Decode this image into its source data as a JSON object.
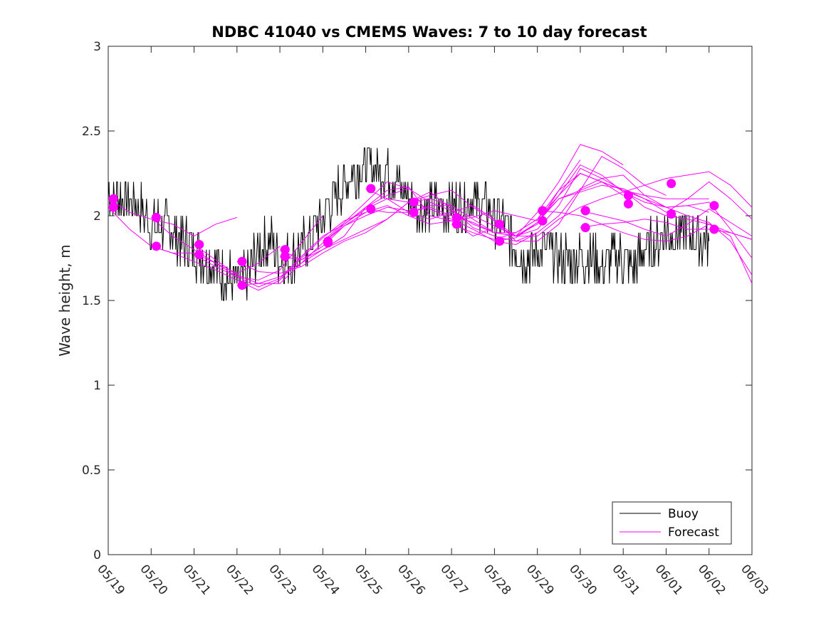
{
  "chart_data": {
    "type": "line",
    "title": "NDBC 41040 vs CMEMS Waves: 7 to 10 day forecast",
    "xlabel": "",
    "ylabel": "Wave height, m",
    "xlim": [
      0,
      15
    ],
    "ylim": [
      0,
      3
    ],
    "x_tick_labels": [
      "05/19",
      "05/20",
      "05/21",
      "05/22",
      "05/23",
      "05/24",
      "05/25",
      "05/26",
      "05/27",
      "05/28",
      "05/29",
      "05/30",
      "05/31",
      "06/01",
      "06/02",
      "06/03"
    ],
    "y_ticks": [
      0,
      0.5,
      1,
      1.5,
      2,
      2.5,
      3
    ],
    "y_tick_labels": [
      "0",
      "0.5",
      "1",
      "1.5",
      "2",
      "2.5",
      "3"
    ],
    "grid": false,
    "legend_position": "bottom-right",
    "colors": {
      "buoy": "#000000",
      "forecast": "#ff00ff"
    },
    "series": [
      {
        "name": "Buoy",
        "x": [
          0,
          0.25,
          0.5,
          0.75,
          1,
          1.25,
          1.5,
          1.75,
          2,
          2.25,
          2.5,
          2.75,
          3,
          3.25,
          3.5,
          3.75,
          4,
          4.25,
          4.5,
          4.75,
          5,
          5.25,
          5.5,
          5.75,
          6,
          6.25,
          6.5,
          6.75,
          7,
          7.25,
          7.5,
          7.75,
          8,
          8.25,
          8.5,
          8.75,
          9,
          9.25,
          9.5,
          9.75,
          10,
          10.25,
          10.5,
          10.75,
          11,
          11.25,
          11.5,
          11.75,
          12,
          12.25,
          12.5,
          12.75,
          13,
          13.25,
          13.5,
          13.75,
          14
        ],
        "y": [
          2.15,
          2.1,
          2.1,
          2.05,
          1.95,
          1.95,
          1.9,
          1.85,
          1.8,
          1.75,
          1.7,
          1.65,
          1.6,
          1.65,
          1.8,
          1.85,
          1.75,
          1.75,
          1.8,
          1.9,
          2.0,
          2.1,
          2.2,
          2.25,
          2.3,
          2.3,
          2.25,
          2.2,
          2.1,
          2.05,
          2.05,
          2.05,
          2.05,
          2.05,
          2.1,
          2.05,
          2.0,
          1.95,
          1.8,
          1.75,
          1.8,
          1.8,
          1.75,
          1.75,
          1.75,
          1.75,
          1.7,
          1.75,
          1.75,
          1.7,
          1.8,
          1.85,
          1.9,
          1.9,
          1.9,
          1.85,
          1.85
        ]
      }
    ],
    "forecast_runs": [
      {
        "x": [
          0,
          0.5,
          1,
          1.5,
          2,
          2.5,
          3
        ],
        "y": [
          2.1,
          2.02,
          1.98,
          1.95,
          1.88,
          1.95,
          1.99
        ]
      },
      {
        "x": [
          0,
          0.5,
          1,
          1.5,
          2,
          2.5,
          3,
          3.5,
          4
        ],
        "y": [
          2.05,
          1.92,
          1.82,
          1.78,
          1.78,
          1.72,
          1.66,
          1.72,
          1.82
        ]
      },
      {
        "x": [
          1,
          1.5,
          2,
          2.5,
          3,
          3.5,
          4,
          4.5,
          5
        ],
        "y": [
          1.99,
          1.88,
          1.8,
          1.72,
          1.64,
          1.62,
          1.68,
          1.84,
          2.0
        ]
      },
      {
        "x": [
          1,
          1.5,
          2,
          2.5,
          3,
          3.5,
          4,
          4.5,
          5,
          5.5,
          6
        ],
        "y": [
          1.82,
          1.78,
          1.73,
          1.68,
          1.62,
          1.56,
          1.62,
          1.75,
          1.87,
          1.97,
          2.02
        ]
      },
      {
        "x": [
          2,
          2.5,
          3,
          3.5,
          4,
          4.5,
          5,
          5.5,
          6,
          6.5,
          7
        ],
        "y": [
          1.83,
          1.74,
          1.65,
          1.6,
          1.6,
          1.72,
          1.84,
          1.94,
          2.0,
          2.05,
          2.03
        ]
      },
      {
        "x": [
          2,
          2.5,
          3,
          3.5,
          4,
          4.5,
          5,
          5.5,
          6,
          6.5,
          7
        ],
        "y": [
          1.77,
          1.7,
          1.64,
          1.58,
          1.63,
          1.76,
          1.88,
          1.95,
          2.05,
          2.12,
          2.16
        ]
      },
      {
        "x": [
          3,
          3.5,
          4,
          4.5,
          5,
          5.5,
          6,
          6.5,
          7,
          7.5,
          8
        ],
        "y": [
          1.73,
          1.67,
          1.66,
          1.7,
          1.78,
          1.85,
          1.9,
          1.98,
          2.08,
          2.1,
          2.06
        ]
      },
      {
        "x": [
          3,
          3.5,
          4,
          4.5,
          5,
          5.5,
          6,
          6.5,
          7,
          7.5,
          8,
          8.5,
          9
        ],
        "y": [
          1.59,
          1.6,
          1.64,
          1.72,
          1.8,
          1.88,
          2.05,
          2.15,
          2.17,
          2.0,
          1.97,
          1.88,
          1.93
        ]
      },
      {
        "x": [
          4,
          4.5,
          5,
          5.5,
          6,
          6.5,
          7,
          7.5,
          8,
          8.5,
          9,
          9.5,
          10
        ],
        "y": [
          1.8,
          1.74,
          1.82,
          1.94,
          2.02,
          2.06,
          2.0,
          1.95,
          1.97,
          1.99,
          2.03,
          2.0,
          1.97
        ]
      },
      {
        "x": [
          4,
          4.5,
          5,
          5.5,
          6,
          6.5,
          7,
          7.5,
          8,
          8.5,
          9,
          9.5,
          10
        ],
        "y": [
          1.76,
          1.74,
          1.8,
          1.86,
          1.92,
          1.98,
          2.08,
          2.14,
          2.04,
          1.93,
          1.88,
          1.85,
          1.9
        ]
      },
      {
        "x": [
          5,
          5.5,
          6,
          6.5,
          7,
          7.5,
          8,
          8.5,
          9,
          9.5,
          10,
          10.5,
          11
        ],
        "y": [
          1.85,
          1.96,
          2.08,
          2.2,
          2.16,
          2.08,
          2.03,
          1.95,
          1.9,
          1.88,
          1.95,
          2.15,
          2.33
        ]
      },
      {
        "x": [
          5,
          5.5,
          6,
          6.5,
          7,
          7.5,
          8,
          8.5,
          9,
          9.5,
          10,
          10.5,
          11,
          11.5,
          12
        ],
        "y": [
          1.84,
          1.95,
          2.04,
          2.1,
          2.08,
          2.04,
          1.98,
          1.92,
          1.85,
          1.87,
          1.96,
          2.12,
          2.25,
          2.2,
          2.12
        ]
      },
      {
        "x": [
          6,
          6.5,
          7,
          7.5,
          8,
          8.5,
          9,
          9.5,
          10,
          10.5,
          11,
          11.5,
          12,
          12.5,
          13
        ],
        "y": [
          2.16,
          2.1,
          2.02,
          1.98,
          2.02,
          2.06,
          1.98,
          1.85,
          1.85,
          1.95,
          2.15,
          2.35,
          2.28,
          2.18,
          2.12
        ]
      },
      {
        "x": [
          6,
          6.5,
          7,
          7.5,
          8,
          8.5,
          9,
          9.5,
          10,
          10.5,
          11,
          11.5,
          12
        ],
        "y": [
          2.04,
          2.02,
          2.02,
          2.06,
          2.06,
          1.98,
          1.9,
          1.88,
          2.02,
          2.2,
          2.42,
          2.38,
          2.3
        ]
      },
      {
        "x": [
          7,
          7.5,
          8,
          8.5,
          9,
          9.5,
          10,
          10.5,
          11,
          11.5,
          12,
          12.5,
          13,
          13.5,
          14
        ],
        "y": [
          2.08,
          2.12,
          2.15,
          2.05,
          1.97,
          1.88,
          1.92,
          2.06,
          2.28,
          2.22,
          2.15,
          2.1,
          2.05,
          2.06,
          2.02
        ]
      },
      {
        "x": [
          7,
          7.5,
          8,
          8.5,
          9,
          9.5,
          10,
          10.5,
          11,
          11.5,
          12,
          12.5,
          13,
          13.5,
          14
        ],
        "y": [
          2.02,
          2.05,
          2.0,
          1.96,
          1.9,
          1.9,
          1.98,
          2.15,
          2.25,
          2.2,
          2.15,
          2.12,
          2.1,
          2.1,
          2.1
        ]
      },
      {
        "x": [
          8,
          8.5,
          9,
          9.5,
          10,
          10.5,
          11,
          11.5,
          12,
          12.5,
          13,
          13.5,
          14,
          14.5,
          15
        ],
        "y": [
          1.99,
          2.0,
          1.94,
          1.88,
          1.96,
          2.1,
          2.15,
          2.2,
          2.15,
          2.05,
          2.0,
          1.98,
          1.95,
          1.9,
          1.86
        ]
      },
      {
        "x": [
          8,
          8.5,
          9,
          9.5,
          10,
          10.5,
          11,
          11.5,
          12,
          12.5,
          13,
          13.5,
          14,
          14.5,
          15
        ],
        "y": [
          1.95,
          1.9,
          1.86,
          1.9,
          1.98,
          2.12,
          2.3,
          2.24,
          2.14,
          2.08,
          2.05,
          2.06,
          2.08,
          1.92,
          1.75
        ]
      },
      {
        "x": [
          9,
          9.5,
          10,
          10.5,
          11,
          11.5,
          12,
          12.5,
          13,
          13.5,
          14,
          14.5,
          15
        ],
        "y": [
          1.95,
          1.88,
          1.88,
          1.98,
          2.05,
          2.1,
          2.14,
          2.18,
          2.22,
          2.24,
          2.26,
          2.18,
          2.05
        ]
      },
      {
        "x": [
          9,
          9.5,
          10,
          10.5,
          11,
          11.5,
          12,
          12.5,
          13,
          13.5,
          14,
          14.5,
          15
        ],
        "y": [
          1.85,
          1.83,
          1.9,
          2.0,
          2.16,
          2.22,
          2.24,
          2.12,
          2.05,
          2.0,
          1.96,
          1.85,
          1.65
        ]
      },
      {
        "x": [
          10,
          10.5,
          11,
          11.5,
          12,
          12.5,
          13,
          13.5,
          14,
          14.5,
          15
        ],
        "y": [
          2.03,
          2.02,
          2.0,
          1.95,
          1.9,
          1.86,
          1.85,
          1.88,
          1.95,
          1.88,
          1.6
        ]
      },
      {
        "x": [
          10,
          10.5,
          11,
          11.5,
          12,
          12.5,
          13,
          13.5,
          14,
          14.5,
          15
        ],
        "y": [
          1.97,
          2.1,
          2.14,
          2.18,
          2.16,
          2.1,
          2.02,
          2.1,
          2.2,
          2.1,
          1.98
        ]
      },
      {
        "x": [
          11,
          11.5,
          12,
          12.5,
          13,
          13.5,
          14,
          14.5,
          15
        ],
        "y": [
          2.03,
          2.0,
          1.97,
          1.92,
          1.88,
          1.95,
          2.04,
          1.96,
          1.88
        ]
      },
      {
        "x": [
          11,
          11.5,
          12,
          12.5,
          13,
          13.5,
          14,
          14.5,
          15
        ],
        "y": [
          1.93,
          1.95,
          1.96,
          1.98,
          1.96,
          1.92,
          1.92,
          1.9,
          1.86
        ]
      }
    ],
    "forecast_points": [
      [
        0.12,
        2.1
      ],
      [
        0.12,
        2.05
      ],
      [
        1.12,
        1.99
      ],
      [
        1.12,
        1.82
      ],
      [
        2.12,
        1.83
      ],
      [
        2.12,
        1.77
      ],
      [
        3.12,
        1.73
      ],
      [
        3.12,
        1.59
      ],
      [
        4.12,
        1.8
      ],
      [
        4.12,
        1.76
      ],
      [
        5.12,
        1.85
      ],
      [
        5.12,
        1.84
      ],
      [
        6.12,
        2.16
      ],
      [
        6.12,
        2.04
      ],
      [
        7.12,
        2.08
      ],
      [
        7.12,
        2.02
      ],
      [
        8.12,
        1.99
      ],
      [
        8.12,
        1.95
      ],
      [
        9.12,
        1.95
      ],
      [
        9.12,
        1.85
      ],
      [
        10.12,
        2.03
      ],
      [
        10.12,
        1.97
      ],
      [
        11.12,
        2.03
      ],
      [
        11.12,
        1.93
      ],
      [
        12.12,
        2.12
      ],
      [
        12.12,
        2.07
      ],
      [
        13.12,
        2.19
      ],
      [
        13.12,
        2.01
      ],
      [
        14.12,
        2.06
      ],
      [
        14.12,
        1.92
      ]
    ],
    "legend": [
      {
        "label": "Buoy",
        "color": "#000000"
      },
      {
        "label": "Forecast",
        "color": "#ff00ff"
      }
    ]
  }
}
